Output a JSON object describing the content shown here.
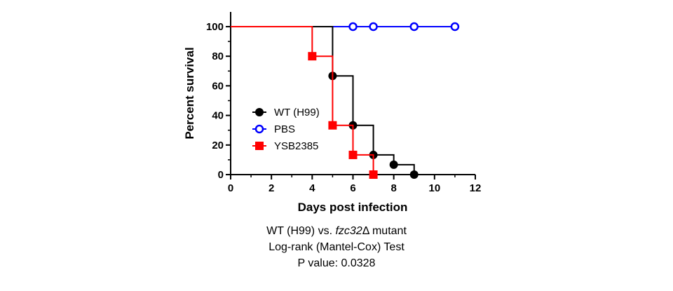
{
  "chart_data": {
    "type": "line",
    "step": true,
    "xlabel": "Days post infection",
    "ylabel": "Percent survival",
    "xlim": [
      0,
      12
    ],
    "ylim": [
      0,
      100
    ],
    "xticks": [
      0,
      2,
      4,
      6,
      8,
      10,
      12
    ],
    "yticks": [
      0,
      20,
      40,
      60,
      80,
      100
    ],
    "grid": false,
    "legend_position": "center-left",
    "series": [
      {
        "name": "WT (H99)",
        "color": "#000000",
        "marker": "filled-circle",
        "steps": [
          [
            0,
            100
          ],
          [
            5,
            66.7
          ],
          [
            6,
            33.3
          ],
          [
            7,
            13.3
          ],
          [
            8,
            6.7
          ],
          [
            9,
            0
          ]
        ],
        "markers": [
          [
            5,
            66.7
          ],
          [
            6,
            33.3
          ],
          [
            7,
            13.3
          ],
          [
            8,
            6.7
          ],
          [
            9,
            0
          ]
        ]
      },
      {
        "name": "PBS",
        "color": "#0000ff",
        "marker": "open-circle",
        "steps": [
          [
            0,
            100
          ],
          [
            11,
            100
          ]
        ],
        "markers": [
          [
            6,
            100
          ],
          [
            7,
            100
          ],
          [
            9,
            100
          ],
          [
            11,
            100
          ]
        ]
      },
      {
        "name": "YSB2385",
        "color": "#ff0000",
        "marker": "filled-square",
        "steps": [
          [
            0,
            100
          ],
          [
            4,
            80
          ],
          [
            5,
            33.3
          ],
          [
            6,
            13.3
          ],
          [
            7,
            0
          ]
        ],
        "markers": [
          [
            4,
            80
          ],
          [
            5,
            33.3
          ],
          [
            6,
            13.3
          ],
          [
            7,
            0
          ]
        ]
      }
    ]
  },
  "caption": {
    "line1_prefix": "WT (H99) vs. ",
    "line1_gene": "fzc32",
    "line1_suffix": "Δ mutant",
    "line2": "Log-rank (Mantel-Cox) Test",
    "line3": "P value: 0.0328"
  }
}
